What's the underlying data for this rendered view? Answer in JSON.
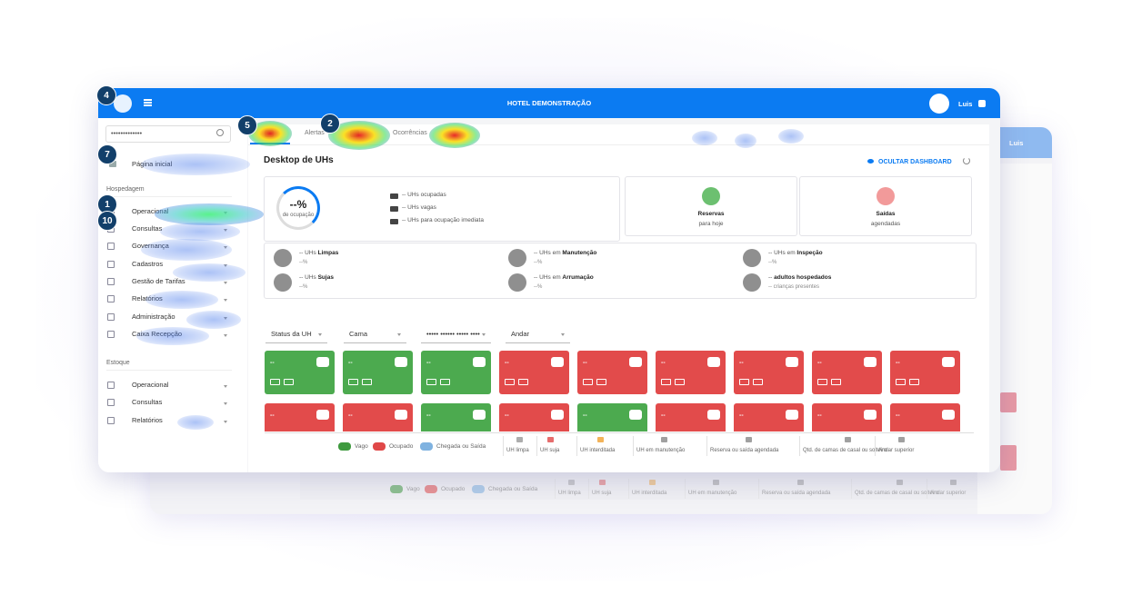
{
  "header": {
    "title": "HOTEL DEMONSTRAÇÃO",
    "user": "Luis"
  },
  "background_window": {
    "user": "Luis"
  },
  "sidebar": {
    "search": "•••••••••••••",
    "home": "Página inicial",
    "sections": [
      {
        "title": "Hospedagem",
        "items": [
          "Operacional",
          "Consultas",
          "Governança",
          "Cadastros",
          "Gestão de Tarifas",
          "Relatórios",
          "Administração",
          "Caixa Recepção"
        ]
      },
      {
        "title": "Estoque",
        "items": [
          "Operacional",
          "Consultas",
          "Relatórios"
        ]
      }
    ]
  },
  "heatmap_markers": [
    4,
    5,
    2,
    7,
    1,
    10
  ],
  "tabs": [
    "Alertas",
    "Ocorrências"
  ],
  "dashboard": {
    "title": "Desktop de UHs",
    "hide_button": "OCULTAR DASHBOARD",
    "occupancy": {
      "value": "--%",
      "caption": "de ocupação",
      "lines": [
        "-- UHs ocupadas",
        "-- UHs vagas",
        "-- UHs para ocupação imediata"
      ]
    },
    "cards": [
      {
        "title": "Reservas",
        "subtitle": "para hoje",
        "color": "#6cc070"
      },
      {
        "title": "Saídas",
        "subtitle": "agendadas",
        "color": "#f29a9a"
      }
    ],
    "stats": [
      {
        "text": "-- UHs ",
        "bold": "Limpas",
        "sub": "--%"
      },
      {
        "text": "-- UHs ",
        "bold": "Sujas",
        "sub": "--%"
      },
      {
        "text": "-- UHs em ",
        "bold": "Manutenção",
        "sub": "--%"
      },
      {
        "text": "-- UHs em ",
        "bold": "Arrumação",
        "sub": "--%"
      },
      {
        "text": "-- UHs em ",
        "bold": "Inspeção",
        "sub": "--%"
      },
      {
        "text": "-- ",
        "bold": "adultos hospedados",
        "sub": "-- crianças presentes"
      }
    ]
  },
  "filters": [
    "Status da UH",
    "Cama",
    "••••• •••••• ••••• ••••",
    "Andar"
  ],
  "rooms": [
    {
      "label": "--",
      "color": "#4caa4f"
    },
    {
      "label": "--",
      "color": "#4caa4f"
    },
    {
      "label": "--",
      "color": "#4caa4f"
    },
    {
      "label": "--",
      "color": "#e24b4b"
    },
    {
      "label": "--",
      "color": "#e24b4b"
    },
    {
      "label": "--",
      "color": "#e24b4b"
    },
    {
      "label": "--",
      "color": "#e24b4b"
    },
    {
      "label": "--",
      "color": "#e24b4b"
    },
    {
      "label": "--",
      "color": "#e24b4b"
    },
    {
      "label": "--",
      "color": "#e24b4b"
    },
    {
      "label": "--",
      "color": "#e24b4b"
    },
    {
      "label": "--",
      "color": "#4caa4f"
    },
    {
      "label": "--",
      "color": "#e24b4b"
    },
    {
      "label": "--",
      "color": "#4caa4f"
    },
    {
      "label": "--",
      "color": "#e24b4b"
    },
    {
      "label": "--",
      "color": "#e24b4b"
    },
    {
      "label": "--",
      "color": "#e24b4b"
    },
    {
      "label": "--",
      "color": "#e24b4b"
    }
  ],
  "legend": {
    "statuses": [
      {
        "label": "Vago",
        "color": "#3f9a3f"
      },
      {
        "label": "Ocupado",
        "color": "#e04848"
      },
      {
        "label": "Chegada ou Saída",
        "color": "#7fb2e0"
      }
    ],
    "icons": [
      "UH limpa",
      "UH suja",
      "UH interditada",
      "UH em manutenção",
      "Reserva ou saída agendada",
      "Qtd. de camas de casal ou solteiro",
      "Andar superior"
    ]
  }
}
